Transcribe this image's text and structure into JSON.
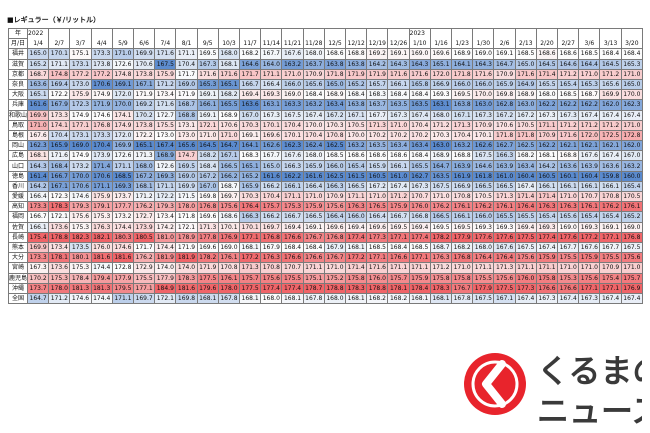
{
  "title": "■レギュラー（￥/リットル）",
  "header": {
    "year_label": "年",
    "date_label": "月/日",
    "columns": [
      {
        "date": "1/4",
        "year": "2022"
      },
      {
        "date": "2/7"
      },
      {
        "date": "3/7"
      },
      {
        "date": "4/4"
      },
      {
        "date": "5/9"
      },
      {
        "date": "6/6"
      },
      {
        "date": "7/4"
      },
      {
        "date": "8/1"
      },
      {
        "date": "9/5"
      },
      {
        "date": "10/3"
      },
      {
        "date": "11/7"
      },
      {
        "date": "11/14"
      },
      {
        "date": "11/21"
      },
      {
        "date": "11/28"
      },
      {
        "date": "12/5"
      },
      {
        "date": "12/12"
      },
      {
        "date": "12/19"
      },
      {
        "date": "12/26"
      },
      {
        "date": "1/10",
        "year": "2023"
      },
      {
        "date": "1/16"
      },
      {
        "date": "1/23"
      },
      {
        "date": "1/30"
      },
      {
        "date": "2/6"
      },
      {
        "date": "2/13"
      },
      {
        "date": "2/20"
      },
      {
        "date": "2/27"
      },
      {
        "date": "3/6"
      },
      {
        "date": "3/13"
      },
      {
        "date": "3/20"
      }
    ]
  },
  "rows": [
    {
      "name": "福井",
      "values": [
        "165.0",
        "170.1",
        "175.1",
        "173.3",
        "171.0",
        "169.9",
        "171.6",
        "171.1",
        "169.5",
        "168.0",
        "168.2",
        "167.7",
        "167.6",
        "168.0",
        "168.6",
        "168.8",
        "169.2",
        "169.1",
        "169.0",
        "169.6",
        "168.9",
        "169.0",
        "169.1",
        "168.5",
        "168.6",
        "168.6",
        "168.5",
        "168.4",
        "168.4"
      ]
    },
    {
      "name": "滋賀",
      "values": [
        "165.2",
        "171.1",
        "173.1",
        "173.8",
        "172.6",
        "170.6",
        "167.5",
        "170.4",
        "167.3",
        "168.1",
        "164.6",
        "164.0",
        "163.2",
        "163.7",
        "163.8",
        "163.8",
        "164.2",
        "164.3",
        "164.3",
        "165.1",
        "164.1",
        "164.3",
        "164.7",
        "165.0",
        "164.5",
        "164.6",
        "164.4",
        "164.5",
        "165.3"
      ]
    },
    {
      "name": "京都",
      "values": [
        "168.7",
        "174.8",
        "177.2",
        "177.2",
        "174.8",
        "173.8",
        "175.9",
        "171.7",
        "171.6",
        "171.6",
        "171.7",
        "171.1",
        "171.0",
        "170.9",
        "171.8",
        "171.9",
        "171.9",
        "171.6",
        "171.6",
        "172.0",
        "171.8",
        "171.6",
        "170.9",
        "171.6",
        "171.4",
        "171.2",
        "171.0",
        "171.2",
        "171.0"
      ]
    },
    {
      "name": "奈良",
      "values": [
        "163.6",
        "169.4",
        "173.0",
        "170.6",
        "169.1",
        "167.1",
        "171.2",
        "169.0",
        "165.3",
        "165.1",
        "166.7",
        "166.4",
        "166.0",
        "165.6",
        "165.0",
        "165.2",
        "165.7",
        "166.1",
        "165.8",
        "166.9",
        "166.0",
        "166.0",
        "165.9",
        "164.9",
        "165.5",
        "165.4",
        "165.3",
        "165.6",
        "165.0"
      ]
    },
    {
      "name": "大阪",
      "values": [
        "165.1",
        "172.2",
        "175.9",
        "174.9",
        "172.0",
        "171.9",
        "173.4",
        "171.9",
        "169.1",
        "168.2",
        "169.4",
        "169.3",
        "169.0",
        "168.4",
        "168.9",
        "168.4",
        "168.3",
        "168.4",
        "168.4",
        "169.3",
        "169.5",
        "170.0",
        "169.8",
        "168.9",
        "168.0",
        "168.5",
        "168.7",
        "169.9",
        "170.0"
      ]
    },
    {
      "name": "兵庫",
      "values": [
        "161.6",
        "167.9",
        "172.3",
        "171.9",
        "170.0",
        "169.2",
        "171.6",
        "168.7",
        "166.1",
        "165.5",
        "163.6",
        "163.1",
        "163.3",
        "163.2",
        "163.4",
        "163.8",
        "163.7",
        "163.5",
        "163.5",
        "163.1",
        "163.8",
        "163.0",
        "162.8",
        "163.0",
        "162.2",
        "162.2",
        "162.2",
        "162.0",
        "162.3"
      ]
    },
    {
      "name": "和歌山",
      "values": [
        "169.9",
        "173.3",
        "174.9",
        "174.6",
        "174.1",
        "170.2",
        "172.7",
        "168.8",
        "169.1",
        "168.9",
        "167.0",
        "167.3",
        "167.5",
        "167.4",
        "167.2",
        "167.1",
        "167.7",
        "167.3",
        "167.4",
        "168.0",
        "167.1",
        "167.3",
        "167.2",
        "167.2",
        "167.3",
        "167.3",
        "167.4",
        "167.4",
        "167.4"
      ]
    },
    {
      "name": "鳥取",
      "values": [
        "171.0",
        "174.1",
        "177.1",
        "176.8",
        "174.9",
        "173.8",
        "175.5",
        "173.1",
        "172.1",
        "170.6",
        "170.3",
        "170.1",
        "170.4",
        "170.0",
        "170.3",
        "170.5",
        "171.3",
        "171.0",
        "170.4",
        "171.2",
        "171.3",
        "170.9",
        "170.6",
        "170.5",
        "171.1",
        "171.2",
        "171.2",
        "171.2",
        "171.0"
      ]
    },
    {
      "name": "島根",
      "values": [
        "167.6",
        "170.4",
        "173.1",
        "173.3",
        "172.0",
        "172.2",
        "173.0",
        "173.0",
        "171.0",
        "171.0",
        "169.1",
        "169.6",
        "170.1",
        "170.4",
        "170.8",
        "170.0",
        "170.2",
        "170.2",
        "170.2",
        "170.3",
        "170.4",
        "170.1",
        "171.8",
        "171.8",
        "170.9",
        "171.6",
        "172.0",
        "172.5",
        "172.8"
      ]
    },
    {
      "name": "岡山",
      "values": [
        "162.3",
        "165.9",
        "169.0",
        "170.4",
        "169.9",
        "165.1",
        "167.4",
        "165.6",
        "164.5",
        "164.7",
        "164.1",
        "162.6",
        "162.3",
        "162.4",
        "162.5",
        "163.2",
        "163.5",
        "163.4",
        "163.4",
        "163.0",
        "163.2",
        "162.6",
        "162.7",
        "162.5",
        "162.2",
        "162.1",
        "162.1",
        "162.1",
        "162.0"
      ]
    },
    {
      "name": "広島",
      "values": [
        "168.1",
        "171.6",
        "174.9",
        "173.9",
        "172.6",
        "171.3",
        "168.9",
        "174.7",
        "168.2",
        "167.1",
        "168.3",
        "167.7",
        "167.6",
        "168.0",
        "168.5",
        "168.6",
        "168.6",
        "168.6",
        "168.4",
        "168.9",
        "168.8",
        "167.5",
        "166.3",
        "168.2",
        "168.1",
        "168.8",
        "167.6",
        "167.4",
        "167.0"
      ]
    },
    {
      "name": "山口",
      "values": [
        "164.3",
        "168.4",
        "173.2",
        "171.4",
        "171.1",
        "168.0",
        "172.6",
        "169.5",
        "168.4",
        "166.5",
        "165.1",
        "165.0",
        "166.3",
        "165.9",
        "166.0",
        "165.4",
        "165.9",
        "166.1",
        "165.5",
        "164.7",
        "163.9",
        "164.6",
        "163.9",
        "163.4",
        "164.2",
        "163.6",
        "163.9",
        "163.6",
        "163.2"
      ]
    },
    {
      "name": "徳島",
      "values": [
        "161.4",
        "166.7",
        "170.0",
        "170.6",
        "168.5",
        "167.2",
        "169.3",
        "169.0",
        "167.2",
        "166.2",
        "165.2",
        "161.6",
        "162.2",
        "161.6",
        "162.5",
        "161.5",
        "160.5",
        "161.0",
        "162.7",
        "163.5",
        "161.9",
        "161.8",
        "161.0",
        "160.4",
        "160.5",
        "160.1",
        "160.4",
        "159.8",
        "160.0"
      ]
    },
    {
      "name": "香川",
      "values": [
        "164.2",
        "167.1",
        "170.6",
        "171.1",
        "169.3",
        "168.1",
        "171.1",
        "169.9",
        "167.0",
        "168.7",
        "165.9",
        "166.2",
        "166.1",
        "166.4",
        "166.3",
        "166.5",
        "167.2",
        "167.4",
        "167.3",
        "167.5",
        "166.9",
        "166.5",
        "166.5",
        "167.4",
        "166.1",
        "166.1",
        "166.1",
        "166.1",
        "165.4"
      ]
    },
    {
      "name": "愛媛",
      "values": [
        "166.4",
        "172.3",
        "174.6",
        "175.9",
        "173.7",
        "171.2",
        "172.2",
        "171.5",
        "169.8",
        "169.7",
        "170.3",
        "170.4",
        "171.1",
        "171.0",
        "170.9",
        "171.1",
        "171.0",
        "171.2",
        "170.7",
        "171.0",
        "170.8",
        "170.5",
        "171.3",
        "171.4",
        "171.4",
        "171.0",
        "170.7",
        "170.8",
        "170.5"
      ]
    },
    {
      "name": "高知",
      "values": [
        "173.3",
        "178.3",
        "179.3",
        "179.1",
        "177.7",
        "176.2",
        "179.3",
        "178.0",
        "176.8",
        "175.6",
        "176.4",
        "175.7",
        "175.3",
        "175.9",
        "175.6",
        "176.3",
        "176.5",
        "175.9",
        "176.0",
        "176.2",
        "176.1",
        "176.2",
        "176.1",
        "176.4",
        "176.3",
        "176.3",
        "176.1",
        "176.2",
        "176.1"
      ]
    },
    {
      "name": "福岡",
      "values": [
        "166.7",
        "172.1",
        "175.6",
        "175.3",
        "173.2",
        "172.7",
        "173.4",
        "171.8",
        "169.6",
        "168.6",
        "166.3",
        "166.2",
        "166.7",
        "166.5",
        "166.4",
        "166.0",
        "166.4",
        "166.7",
        "166.8",
        "166.5",
        "166.1",
        "166.0",
        "165.5",
        "165.5",
        "165.4",
        "165.6",
        "165.4",
        "165.4",
        "165.2"
      ]
    },
    {
      "name": "佐賀",
      "values": [
        "166.1",
        "173.6",
        "175.3",
        "176.3",
        "174.4",
        "173.9",
        "174.2",
        "172.1",
        "171.3",
        "170.1",
        "170.1",
        "169.7",
        "169.4",
        "169.1",
        "169.6",
        "169.4",
        "169.6",
        "169.5",
        "169.4",
        "169.5",
        "169.5",
        "169.3",
        "169.3",
        "169.4",
        "169.3",
        "169.0",
        "169.3",
        "169.1",
        "169.0"
      ]
    },
    {
      "name": "長崎",
      "values": [
        "175.4",
        "178.8",
        "182.3",
        "182.1",
        "180.3",
        "180.5",
        "181.0",
        "178.9",
        "177.8",
        "176.9",
        "177.1",
        "176.8",
        "176.6",
        "176.7",
        "176.8",
        "177.4",
        "177.3",
        "177.1",
        "177.4",
        "178.2",
        "177.9",
        "177.6",
        "177.6",
        "177.5",
        "177.4",
        "177.6",
        "177.2",
        "177.1",
        "176.8"
      ]
    },
    {
      "name": "熊本",
      "values": [
        "169.9",
        "173.4",
        "173.5",
        "176.0",
        "174.6",
        "171.7",
        "174.4",
        "171.9",
        "169.6",
        "169.0",
        "168.1",
        "167.9",
        "168.4",
        "168.4",
        "167.9",
        "168.1",
        "168.5",
        "168.4",
        "168.5",
        "168.7",
        "168.2",
        "168.0",
        "167.6",
        "167.5",
        "167.4",
        "167.7",
        "167.6",
        "167.7",
        "167.5"
      ]
    },
    {
      "name": "大分",
      "values": [
        "173.3",
        "178.1",
        "180.1",
        "181.6",
        "181.6",
        "176.2",
        "181.9",
        "181.9",
        "178.2",
        "176.1",
        "177.2",
        "176.3",
        "176.6",
        "176.6",
        "176.7",
        "177.2",
        "177.1",
        "176.6",
        "177.1",
        "176.3",
        "176.8",
        "176.4",
        "176.4",
        "175.6",
        "175.9",
        "175.5",
        "175.9",
        "175.5",
        "175.6"
      ]
    },
    {
      "name": "宮崎",
      "values": [
        "167.3",
        "173.6",
        "175.3",
        "174.4",
        "172.8",
        "172.9",
        "174.0",
        "174.0",
        "171.9",
        "170.8",
        "171.3",
        "170.8",
        "170.7",
        "171.1",
        "171.0",
        "171.4",
        "171.6",
        "171.1",
        "171.1",
        "171.2",
        "171.0",
        "171.1",
        "171.3",
        "171.1",
        "171.1",
        "171.0",
        "171.0",
        "170.9",
        "171.0"
      ]
    },
    {
      "name": "鹿児島",
      "values": [
        "170.2",
        "175.3",
        "178.4",
        "179.4",
        "177.9",
        "175.5",
        "177.9",
        "178.3",
        "177.5",
        "176.1",
        "175.7",
        "175.6",
        "175.5",
        "175.1",
        "175.2",
        "175.8",
        "176.0",
        "175.7",
        "175.9",
        "175.8",
        "175.8",
        "175.5",
        "175.6",
        "176.0",
        "175.8",
        "175.3",
        "175.6",
        "175.4",
        "175.7"
      ]
    },
    {
      "name": "沖縄",
      "values": [
        "173.7",
        "178.0",
        "181.3",
        "181.3",
        "179.5",
        "177.1",
        "184.9",
        "181.6",
        "179.6",
        "178.0",
        "177.5",
        "177.4",
        "177.4",
        "178.7",
        "178.8",
        "178.3",
        "178.8",
        "178.1",
        "178.4",
        "178.3",
        "176.7",
        "177.9",
        "177.5",
        "177.3",
        "176.6",
        "176.6",
        "177.1",
        "177.1",
        "176.9"
      ]
    },
    {
      "name": "全国",
      "values": [
        "164.7",
        "171.2",
        "174.6",
        "174.4",
        "171.1",
        "169.7",
        "172.1",
        "169.8",
        "168.1",
        "167.8",
        "168.1",
        "168.0",
        "168.1",
        "167.8",
        "168.0",
        "168.1",
        "168.2",
        "168.2",
        "168.1",
        "168.1",
        "167.8",
        "167.5",
        "167.1",
        "167.4",
        "167.3",
        "167.4",
        "167.3",
        "167.4",
        "167.4"
      ]
    }
  ],
  "logo": {
    "line1": "くるまの",
    "line2": "ニュース"
  }
}
